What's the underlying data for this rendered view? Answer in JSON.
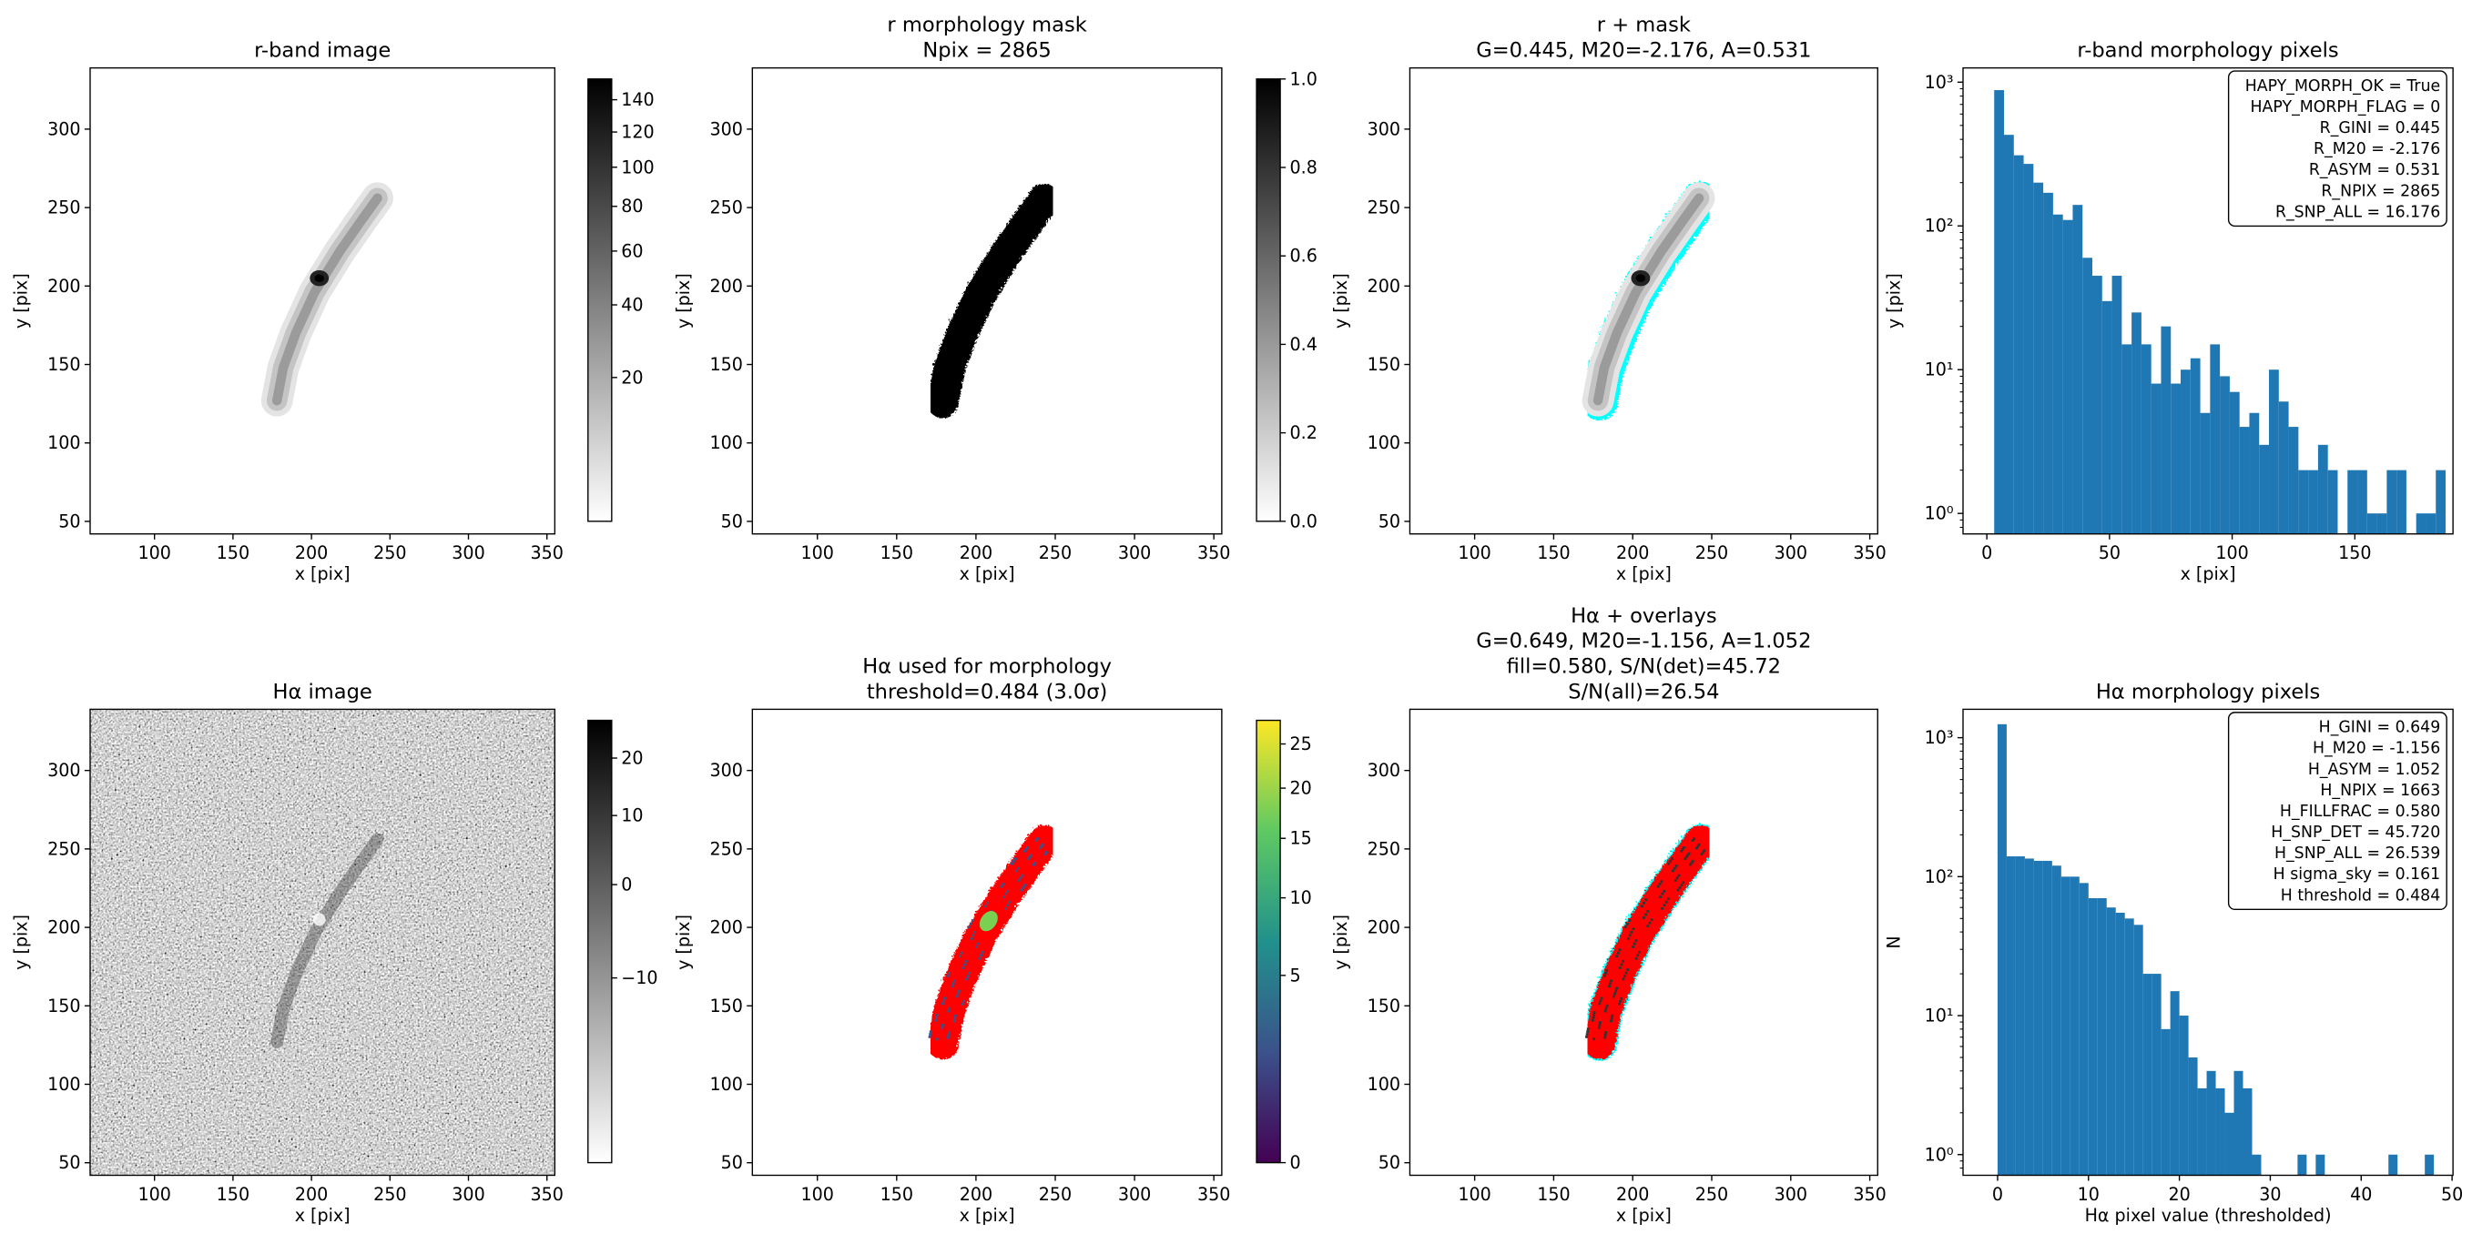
{
  "chart_data": [
    {
      "type": "image",
      "title": [
        "r-band image"
      ],
      "xlabel": "x [pix]",
      "ylabel": "y [pix]",
      "xlim": [
        59,
        355
      ],
      "ylim": [
        42,
        339
      ],
      "xticks": [
        100,
        150,
        200,
        250,
        300,
        350
      ],
      "yticks": [
        50,
        100,
        150,
        200,
        250,
        300
      ],
      "cmap": "gray_r",
      "colorbar": {
        "clim": [
          4.2,
          153.7
        ],
        "scale": "sqrt",
        "ticks": [
          20,
          40,
          60,
          80,
          100,
          120,
          140
        ]
      }
    },
    {
      "type": "image",
      "title": [
        "r morphology mask",
        "Npix = 2865"
      ],
      "xlabel": "x [pix]",
      "ylabel": "y [pix]",
      "xlim": [
        59,
        355
      ],
      "ylim": [
        42,
        339
      ],
      "xticks": [
        100,
        150,
        200,
        250,
        300,
        350
      ],
      "yticks": [
        50,
        100,
        150,
        200,
        250,
        300
      ],
      "cmap": "gray_r",
      "colorbar": {
        "clim": [
          0,
          1
        ],
        "scale": "linear",
        "ticks": [
          {
            "value": 0,
            "label": "0.0"
          },
          0.2,
          0.4,
          0.6,
          0.8,
          {
            "value": 1,
            "label": "1.0"
          }
        ]
      }
    },
    {
      "type": "image",
      "title": [
        "r + mask",
        "G=0.445, M20=-2.176, A=0.531"
      ],
      "xlabel": "x [pix]",
      "ylabel": "y [pix]",
      "xlim": [
        59,
        355
      ],
      "ylim": [
        42,
        339
      ],
      "xticks": [
        100,
        150,
        200,
        250,
        300,
        350
      ],
      "yticks": [
        50,
        100,
        150,
        200,
        250,
        300
      ],
      "cmap": "gray_r",
      "contour_color": "#00ffff"
    },
    {
      "type": "histogram",
      "title": [
        "r-band morphology pixels"
      ],
      "xlabel": "x [pix]",
      "ylabel": "y [pix]",
      "color": "#1f77b4",
      "yscale": "log",
      "xlim": [
        -9.7,
        190
      ],
      "ylim": [
        0.72,
        1256
      ],
      "xticks": [
        0,
        50,
        100,
        150
      ],
      "yticks": [
        {
          "value": 1,
          "label": "10⁰"
        },
        {
          "value": 10,
          "label": "10¹"
        },
        {
          "value": 100,
          "label": "10²"
        },
        {
          "value": 1000,
          "label": "10³"
        }
      ],
      "bins": [
        3,
        7,
        11,
        15,
        19,
        23,
        27,
        31,
        35,
        39,
        43,
        47,
        51,
        55,
        59,
        63,
        67,
        71,
        75,
        79,
        83,
        87,
        91,
        95,
        99,
        103,
        107,
        111,
        115,
        119,
        123,
        127,
        131,
        135,
        139,
        143,
        147,
        151,
        155,
        159,
        163,
        167,
        171,
        175,
        179,
        183,
        187
      ],
      "values": [
        880,
        430,
        310,
        270,
        200,
        170,
        120,
        110,
        140,
        60,
        45,
        30,
        45,
        15,
        25,
        15,
        8,
        20,
        8,
        10,
        12,
        5,
        15,
        9,
        7,
        4,
        5,
        3,
        10,
        6,
        4,
        2,
        2,
        3,
        2,
        0,
        2,
        2,
        1,
        1,
        2,
        2,
        0,
        1,
        1,
        2
      ],
      "annotation": [
        "HAPY_MORPH_OK = True",
        "HAPY_MORPH_FLAG = 0",
        "R_GINI = 0.445",
        "R_M20 = -2.176",
        "R_ASYM = 0.531",
        "R_NPIX = 2865",
        "R_SNP_ALL = 16.176"
      ]
    },
    {
      "type": "image",
      "title": [
        "Hα image"
      ],
      "xlabel": "x [pix]",
      "ylabel": "y [pix]",
      "xlim": [
        59,
        355
      ],
      "ylim": [
        42,
        339
      ],
      "xticks": [
        100,
        150,
        200,
        250,
        300,
        350
      ],
      "yticks": [
        50,
        100,
        150,
        200,
        250,
        300
      ],
      "cmap": "gray_r",
      "colorbar": {
        "clim": [
          -17.9,
          27.4
        ],
        "scale": "sqrt",
        "ticks": [
          {
            "value": -10,
            "label": "−10"
          },
          0,
          10,
          20
        ]
      }
    },
    {
      "type": "image",
      "title": [
        "Hα used for morphology",
        "threshold=0.484 (3.0σ)"
      ],
      "xlabel": "x [pix]",
      "ylabel": "y [pix]",
      "xlim": [
        59,
        355
      ],
      "ylim": [
        42,
        339
      ],
      "xticks": [
        100,
        150,
        200,
        250,
        300,
        350
      ],
      "yticks": [
        50,
        100,
        150,
        200,
        250,
        300
      ],
      "cmap": "viridis",
      "mask_color": "#ff0000",
      "colorbar": {
        "clim": [
          0,
          27.9
        ],
        "scale": "sqrt",
        "ticks": [
          0,
          5,
          10,
          15,
          20,
          25
        ]
      }
    },
    {
      "type": "image",
      "title": [
        "Hα + overlays",
        "G=0.649, M20=-1.156, A=1.052",
        "fill=0.580, S/N(det)=45.72",
        "S/N(all)=26.54"
      ],
      "xlabel": "x [pix]",
      "ylabel": "y [pix]",
      "xlim": [
        59,
        355
      ],
      "ylim": [
        42,
        339
      ],
      "xticks": [
        100,
        150,
        200,
        250,
        300,
        350
      ],
      "yticks": [
        50,
        100,
        150,
        200,
        250,
        300
      ],
      "cmap": "gray_r",
      "mask_color": "#ff0000",
      "contour_color": "#00ffff"
    },
    {
      "type": "histogram",
      "title": [
        "Hα morphology pixels"
      ],
      "xlabel": "Hα pixel value (thresholded)",
      "ylabel": "N",
      "color": "#1f77b4",
      "yscale": "log",
      "xlim": [
        -3.8,
        50.1
      ],
      "ylim": [
        0.71,
        1601
      ],
      "xticks": [
        0,
        10,
        20,
        30,
        40,
        50
      ],
      "yticks": [
        {
          "value": 1,
          "label": "10⁰"
        },
        {
          "value": 10,
          "label": "10¹"
        },
        {
          "value": 100,
          "label": "10²"
        },
        {
          "value": 1000,
          "label": "10³"
        }
      ],
      "bins": [
        0,
        1,
        2,
        3,
        4,
        5,
        6,
        7,
        8,
        9,
        10,
        11,
        12,
        13,
        14,
        15,
        16,
        17,
        18,
        19,
        20,
        21,
        22,
        23,
        24,
        25,
        26,
        27,
        28,
        29,
        30,
        31,
        32,
        33,
        34,
        35,
        36,
        37,
        38,
        39,
        40,
        41,
        42,
        43,
        44,
        45,
        46,
        47,
        48
      ],
      "values": [
        1250,
        140,
        140,
        135,
        130,
        130,
        120,
        100,
        100,
        90,
        70,
        70,
        60,
        55,
        50,
        45,
        20,
        20,
        8,
        15,
        10,
        5,
        3,
        4,
        3,
        2,
        4,
        3,
        1,
        0,
        0,
        0,
        0,
        1,
        0,
        1,
        0,
        0,
        0,
        0,
        0,
        0,
        0,
        1,
        0,
        0,
        0,
        1
      ],
      "annotation": [
        "H_GINI = 0.649",
        "H_M20 = -1.156",
        "H_ASYM = 1.052",
        "H_NPIX = 1663",
        "H_FILLFRAC = 0.580",
        "H_SNP_DET = 45.720",
        "H_SNP_ALL = 26.539",
        "H sigma_sky = 0.161",
        "H threshold = 0.484"
      ]
    }
  ]
}
